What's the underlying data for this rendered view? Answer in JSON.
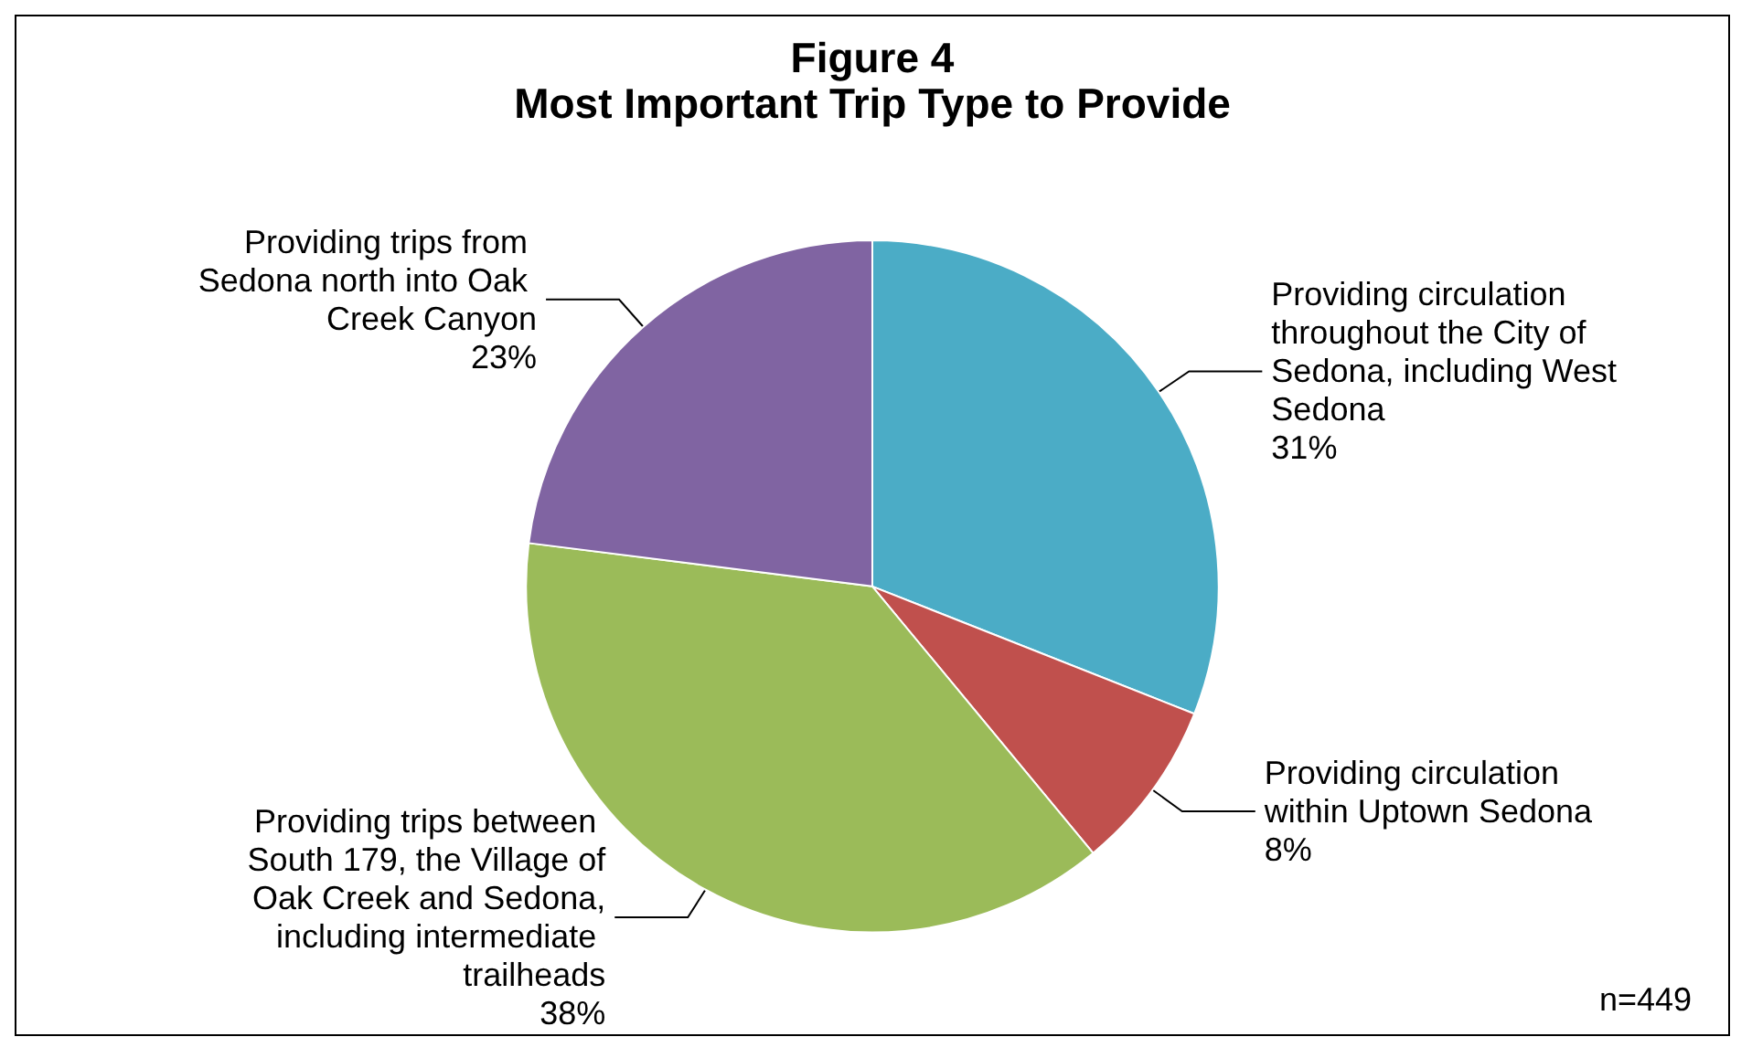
{
  "chart_data": {
    "type": "pie",
    "title": "Figure 4",
    "subtitle": "Most Important Trip Type to Provide",
    "categories": [
      "Providing circulation throughout the City of Sedona, including West Sedona",
      "Providing circulation within Uptown Sedona",
      "Providing trips between South 179, the Village of Oak Creek and Sedona, including intermediate trailheads",
      "Providing trips from Sedona north into Oak Creek Canyon"
    ],
    "values": [
      31,
      8,
      38,
      23
    ],
    "value_labels": [
      "31%",
      "8%",
      "38%",
      "23%"
    ],
    "colors": [
      "#4bacc6",
      "#c0504d",
      "#9bbb59",
      "#8064a2"
    ],
    "annotations": [
      "n=449"
    ],
    "legend": false
  }
}
